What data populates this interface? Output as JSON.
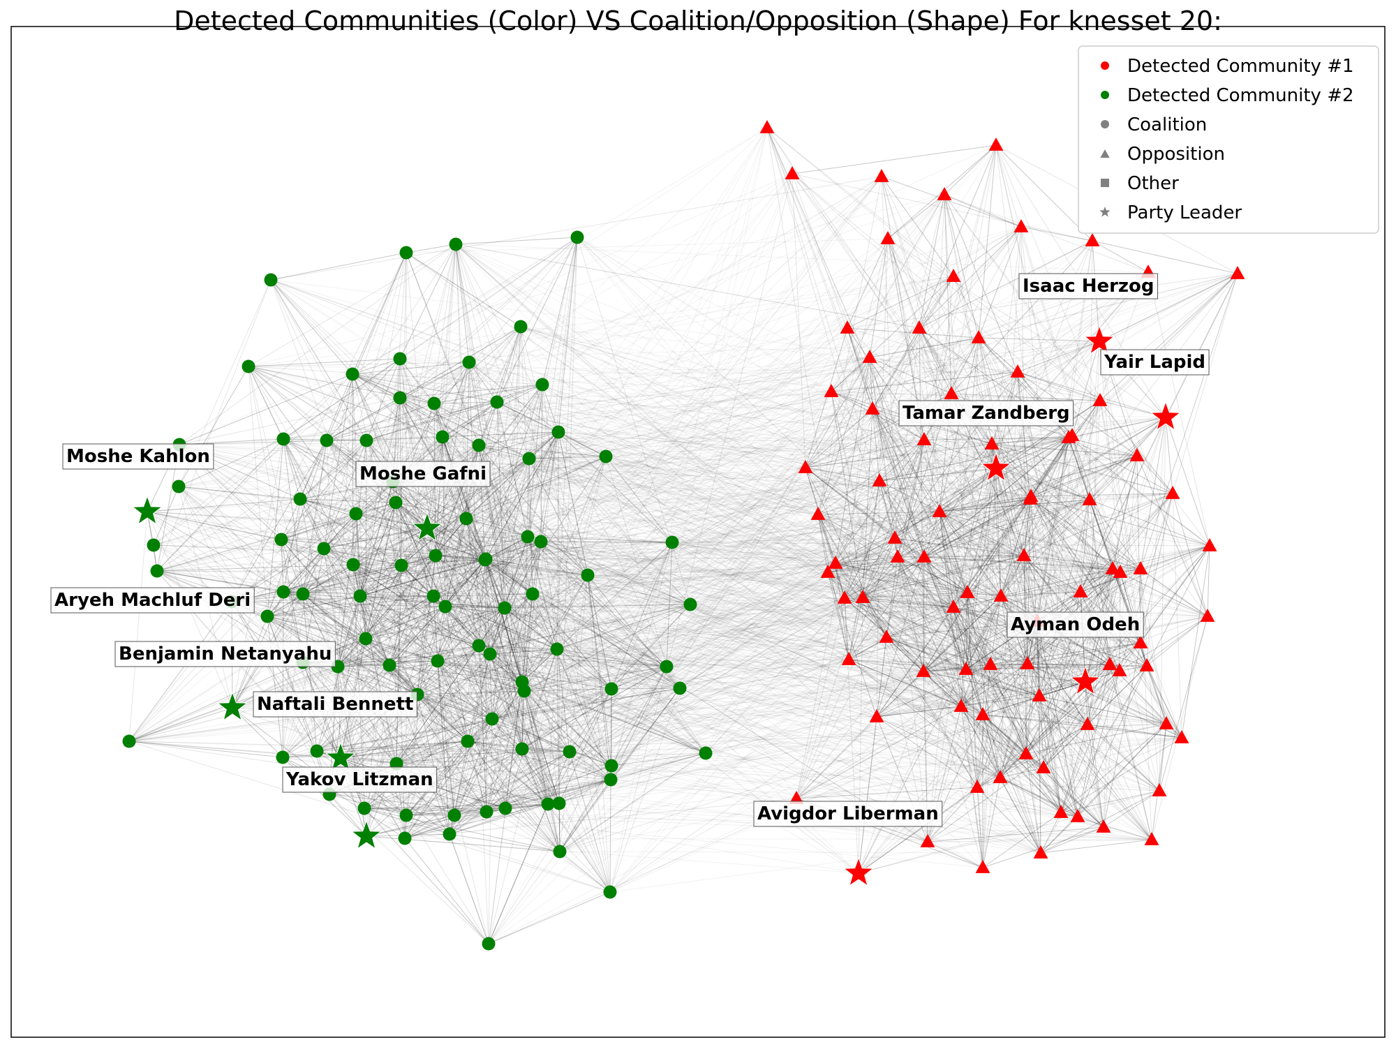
{
  "title": "Detected Communities (Color) VS Coalition/Opposition (Shape) For knesset 20:",
  "colors": {
    "community1": "#ff0000",
    "community2": "#008000",
    "edge": "#000000",
    "legend_gray": "#808080"
  },
  "legend": [
    {
      "label": "Detected Community #1",
      "shape": "circle",
      "color": "#ff0000"
    },
    {
      "label": "Detected Community #2",
      "shape": "circle",
      "color": "#008000"
    },
    {
      "label": "Coalition",
      "shape": "circle",
      "color": "#808080"
    },
    {
      "label": "Opposition",
      "shape": "triangle",
      "color": "#808080"
    },
    {
      "label": "Other",
      "shape": "square",
      "color": "#808080"
    },
    {
      "label": "Party Leader",
      "shape": "star",
      "color": "#808080"
    }
  ],
  "leaders": [
    {
      "name": "Moshe  Kahlon",
      "community": 2
    },
    {
      "name": "Moshe Gafni",
      "community": 2
    },
    {
      "name": "Aryeh Machluf Deri",
      "community": 2
    },
    {
      "name": "Benjamin Netanyahu",
      "community": 2
    },
    {
      "name": "Naftali Bennett",
      "community": 2
    },
    {
      "name": "Yakov Litzman",
      "community": 2
    },
    {
      "name": "Isaac Herzog",
      "community": 1
    },
    {
      "name": "Yair Lapid",
      "community": 1
    },
    {
      "name": "Tamar Zandberg",
      "community": 1
    },
    {
      "name": "Ayman Odeh",
      "community": 1
    },
    {
      "name": "Avigdor Liberman",
      "community": 1
    }
  ],
  "summary": {
    "community2_shape": "Coalition",
    "community1_shape": "Opposition"
  }
}
